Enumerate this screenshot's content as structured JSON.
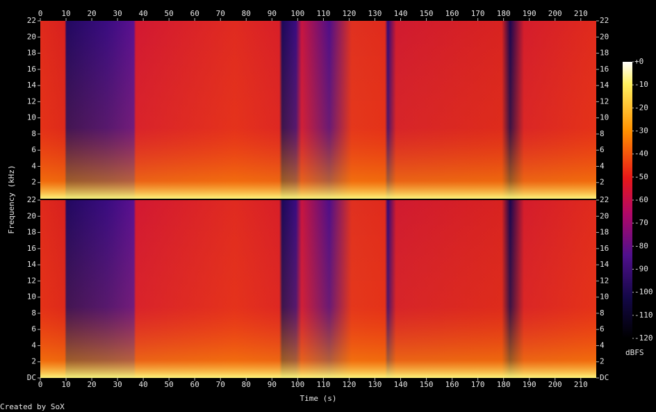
{
  "chart_data": {
    "type": "spectrogram",
    "x_label": "Time (s)",
    "y_label": "Frequency (kHz)",
    "credit": "Created by SoX",
    "xlim": [
      0,
      216
    ],
    "xticks": [
      0,
      10,
      20,
      30,
      40,
      50,
      60,
      70,
      80,
      90,
      100,
      110,
      120,
      130,
      140,
      150,
      160,
      170,
      180,
      190,
      200,
      210
    ],
    "ylim": [
      0,
      22
    ],
    "channels": [
      {
        "yticks": [
          2,
          4,
          6,
          8,
          10,
          12,
          14,
          16,
          18,
          20,
          22
        ]
      },
      {
        "yticks": [
          {
            "value": 0,
            "label": "DC"
          },
          2,
          4,
          6,
          8,
          10,
          12,
          14,
          16,
          18,
          20,
          22
        ]
      }
    ],
    "colorbar": {
      "label": "dBFS",
      "lim": [
        -120,
        0
      ],
      "ticks": [
        {
          "value": 0,
          "label": "+0"
        },
        -10,
        -20,
        -30,
        -40,
        -50,
        -60,
        -70,
        -80,
        -90,
        -100,
        -110,
        -120
      ]
    }
  }
}
